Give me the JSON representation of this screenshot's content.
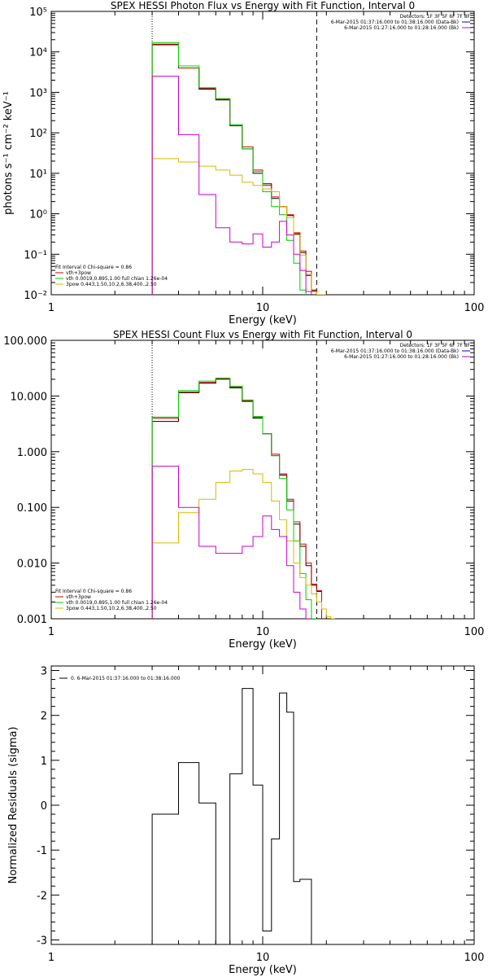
{
  "chart_data": [
    {
      "type": "line",
      "title": "SPEX HESSI Photon Flux vs Energy with Fit Function, Interval 0",
      "xlabel": "Energy (keV)",
      "ylabel": "photons s⁻¹ cm⁻² keV⁻¹",
      "xscale": "log",
      "yscale": "log",
      "xlim": [
        1,
        100
      ],
      "ylim": [
        0.01,
        100000
      ],
      "xticklabels": [
        "1",
        "10",
        "100"
      ],
      "yticklabels": [
        "10⁻²",
        "10⁻¹",
        "10⁰",
        "10¹",
        "10²",
        "10³",
        "10⁴",
        "10⁵"
      ],
      "yticks": [
        0.01,
        0.1,
        1,
        10,
        100,
        1000,
        10000,
        100000
      ],
      "vlines": [
        {
          "x": 3,
          "style": "dotted"
        },
        {
          "x": 18,
          "style": "dashed"
        }
      ],
      "legend_top": {
        "header": "Detectors: 1F 3F 5F 6F 7F 8F",
        "entries": [
          {
            "text": "6-Mar-2015 01:37:16.000 to 01:38:16.000 (Data-Bk)",
            "color": "#0000cc"
          },
          {
            "text": "6-Mar-2015 01:27:16.000 to 01:28:16.000 (Bk)",
            "color": "#cc00cc"
          }
        ]
      },
      "legend_bottom": {
        "header": "Fit Interval 0   Chi-square = 0.86",
        "entries": [
          {
            "text": "vth+3pow",
            "color": "#cc0000"
          },
          {
            "text": "vth 0.0019,0.895,1.00  full chian 1.26e-04",
            "color": "#00cc00"
          },
          {
            "text": "3pow 0.443,1.50,10.2,6.38,400.,2.50",
            "color": "#d9b800"
          }
        ]
      },
      "edges": [
        3,
        4,
        5,
        6,
        7,
        8,
        9,
        10,
        11,
        12,
        13,
        14,
        15,
        16,
        17,
        18,
        19,
        20,
        21
      ],
      "series": [
        {
          "name": "Data-Bk",
          "color": "#000000",
          "values": [
            15000,
            4000,
            1200,
            650,
            150,
            40,
            10,
            5.5,
            2.4,
            1.5,
            0.9,
            0.32,
            0.11,
            0.03,
            0.0125
          ]
        },
        {
          "name": "vth+3pow",
          "color": "#cc0000",
          "values": [
            15500,
            4000,
            1250,
            680,
            160,
            45,
            12,
            5,
            2.6,
            1.5,
            0.95,
            0.34,
            0.12,
            0.038,
            0.013
          ]
        },
        {
          "name": "vth",
          "color": "#00cc00",
          "values": [
            17000,
            4500,
            1300,
            700,
            160,
            40,
            11,
            3.5,
            1.5,
            0.95,
            0.22,
            0.06,
            0.013
          ]
        },
        {
          "name": "3pow",
          "color": "#d9b800",
          "values": [
            23,
            19,
            15,
            12,
            9,
            6,
            5,
            4.1,
            3.5,
            1.5,
            0.8,
            0.3,
            0.095,
            0.032,
            0.012,
            0.01,
            0.0085
          ]
        },
        {
          "name": "Bk",
          "color": "#cc00cc",
          "values": [
            2500,
            90,
            3,
            0.45,
            0.2,
            0.18,
            0.32,
            0.15,
            0.2,
            0.65,
            0.3,
            0.1,
            0.04,
            0.012
          ]
        }
      ]
    },
    {
      "type": "line",
      "title": "SPEX HESSI Count Flux vs Energy with Fit Function, Interval 0",
      "xlabel": "Energy (keV)",
      "ylabel": "",
      "xscale": "log",
      "yscale": "log",
      "xlim": [
        1,
        100
      ],
      "ylim": [
        0.001,
        100
      ],
      "xticklabels": [
        "1",
        "10",
        "100"
      ],
      "yticklabels": [
        "0.001",
        "0.010",
        "0.100",
        "1.000",
        "10.000",
        "100.000"
      ],
      "yticks": [
        0.001,
        0.01,
        0.1,
        1,
        10,
        100
      ],
      "vlines": [
        {
          "x": 3,
          "style": "dotted"
        },
        {
          "x": 18,
          "style": "dashed"
        }
      ],
      "legend_top": {
        "header": "Detectors: 1F 3F 5F 6F 7F 8F",
        "entries": [
          {
            "text": "6-Mar-2015 01:37:16.000 to 01:38:16.000 (Data-Bk)",
            "color": "#0000cc"
          },
          {
            "text": "6-Mar-2015 01:27:16.000 to 01:28:16.000 (Bk)",
            "color": "#cc00cc"
          }
        ]
      },
      "legend_bottom": {
        "header": "Fit Interval 0   Chi-square = 0.86",
        "entries": [
          {
            "text": "vth+3pow",
            "color": "#cc0000"
          },
          {
            "text": "vth 0.0019,0.895,1.00  full chian 1.26e-04",
            "color": "#00cc00"
          },
          {
            "text": "3pow 0.443,1.50,10.2,6.38,400.,2.50",
            "color": "#d9b800"
          }
        ]
      },
      "edges": [
        3,
        4,
        5,
        6,
        7,
        8,
        9,
        10,
        11,
        12,
        13,
        14,
        15,
        16,
        17,
        18,
        19,
        20,
        21,
        22,
        23
      ],
      "series": [
        {
          "name": "Data-Bk",
          "color": "#000000",
          "values": [
            3.5,
            11.5,
            17,
            20,
            14,
            8,
            4,
            2.1,
            0.85,
            0.38,
            0.13,
            0.05,
            0.02,
            0.009,
            0.004,
            0.0031
          ]
        },
        {
          "name": "vth+3pow",
          "color": "#cc0000",
          "values": [
            4,
            11.8,
            17.5,
            20.5,
            14.5,
            8.2,
            4.2,
            2.1,
            0.9,
            0.4,
            0.14,
            0.055,
            0.022,
            0.01,
            0.0042,
            0.0032
          ]
        },
        {
          "name": "vth",
          "color": "#00cc00",
          "values": [
            4.2,
            12.5,
            18.5,
            21,
            15,
            8.5,
            4.3,
            2.1,
            0.85,
            0.33,
            0.09,
            0.025,
            0.0065,
            0.0022,
            0.001
          ]
        },
        {
          "name": "3pow",
          "color": "#d9b800",
          "values": [
            0.023,
            0.08,
            0.14,
            0.28,
            0.45,
            0.48,
            0.4,
            0.28,
            0.13,
            0.06,
            0.025,
            0.01,
            0.0055,
            0.004,
            0.0028,
            0.002,
            0.0015,
            0.0011,
            0.001
          ]
        },
        {
          "name": "Bk",
          "color": "#cc00cc",
          "values": [
            0.55,
            0.1,
            0.02,
            0.015,
            0.015,
            0.02,
            0.03,
            0.07,
            0.04,
            0.03,
            0.009,
            0.003,
            0.0015,
            0.001
          ]
        }
      ]
    },
    {
      "type": "line",
      "title": "",
      "xlabel": "Energy (keV)",
      "ylabel": "Normalized Residuals (sigma)",
      "xscale": "log",
      "yscale": "linear",
      "xlim": [
        1,
        100
      ],
      "ylim": [
        -3.1,
        3.1
      ],
      "xticklabels": [
        "1",
        "10",
        "100"
      ],
      "yticklabels": [
        "-3",
        "-2",
        "-1",
        "0",
        "1",
        "2",
        "3"
      ],
      "yticks": [
        -3,
        -2,
        -1,
        0,
        1,
        2,
        3
      ],
      "legend_top": {
        "header": "",
        "entries": [
          {
            "text": "0.  6-Mar-2015 01:37:16.000 to 01:38:16.000",
            "color": "#000000"
          }
        ]
      },
      "edges": [
        3,
        4,
        5,
        6,
        7,
        8,
        9,
        10,
        11,
        12,
        13,
        14,
        15,
        16,
        17,
        18
      ],
      "series": [
        {
          "name": "0.",
          "color": "#000000",
          "values": [
            -0.2,
            0.95,
            0.05,
            -3.1,
            0.7,
            2.6,
            0.45,
            -2.8,
            -0.75,
            2.5,
            2.07,
            -1.7,
            -1.65,
            -1.65,
            -3.1
          ]
        }
      ]
    }
  ]
}
